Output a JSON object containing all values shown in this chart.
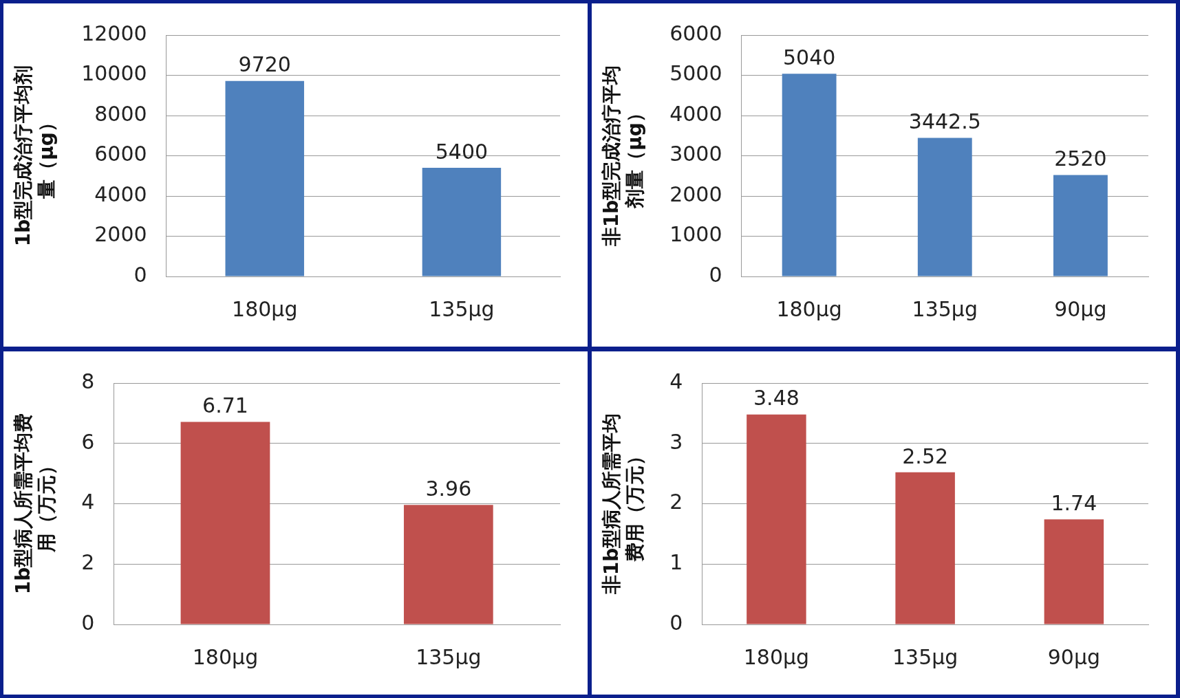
{
  "chart_data": [
    {
      "type": "bar",
      "ylabel": "1b型完成治疗平均剂量（μg）",
      "categories": [
        "180μg",
        "135μg"
      ],
      "values": [
        9720,
        5400
      ],
      "color": "#4f81bd",
      "ylim": [
        0,
        12000
      ],
      "yticks": [
        0,
        2000,
        4000,
        6000,
        8000,
        10000,
        12000
      ],
      "grid": "y",
      "data_labels": true
    },
    {
      "type": "bar",
      "ylabel": "非1b型完成治疗平均剂量（μg）",
      "categories": [
        "180μg",
        "135μg",
        "90μg"
      ],
      "values": [
        5040,
        3442.5,
        2520
      ],
      "color": "#4f81bd",
      "ylim": [
        0,
        6000
      ],
      "yticks": [
        0,
        1000,
        2000,
        3000,
        4000,
        5000,
        6000
      ],
      "grid": "y",
      "data_labels": true
    },
    {
      "type": "bar",
      "ylabel": "1b型病人所需平均费用（万元）",
      "categories": [
        "180μg",
        "135μg"
      ],
      "values": [
        6.71,
        3.96
      ],
      "color": "#c0504d",
      "ylim": [
        0,
        8
      ],
      "yticks": [
        0,
        2,
        4,
        6,
        8
      ],
      "grid": "y",
      "data_labels": true
    },
    {
      "type": "bar",
      "ylabel": "非1b型病人所需平均费用（万元）",
      "categories": [
        "180μg",
        "135μg",
        "90μg"
      ],
      "values": [
        3.48,
        2.52,
        1.74
      ],
      "color": "#c0504d",
      "ylim": [
        0,
        4
      ],
      "yticks": [
        0,
        1,
        2,
        3,
        4
      ],
      "grid": "y",
      "data_labels": true
    }
  ]
}
